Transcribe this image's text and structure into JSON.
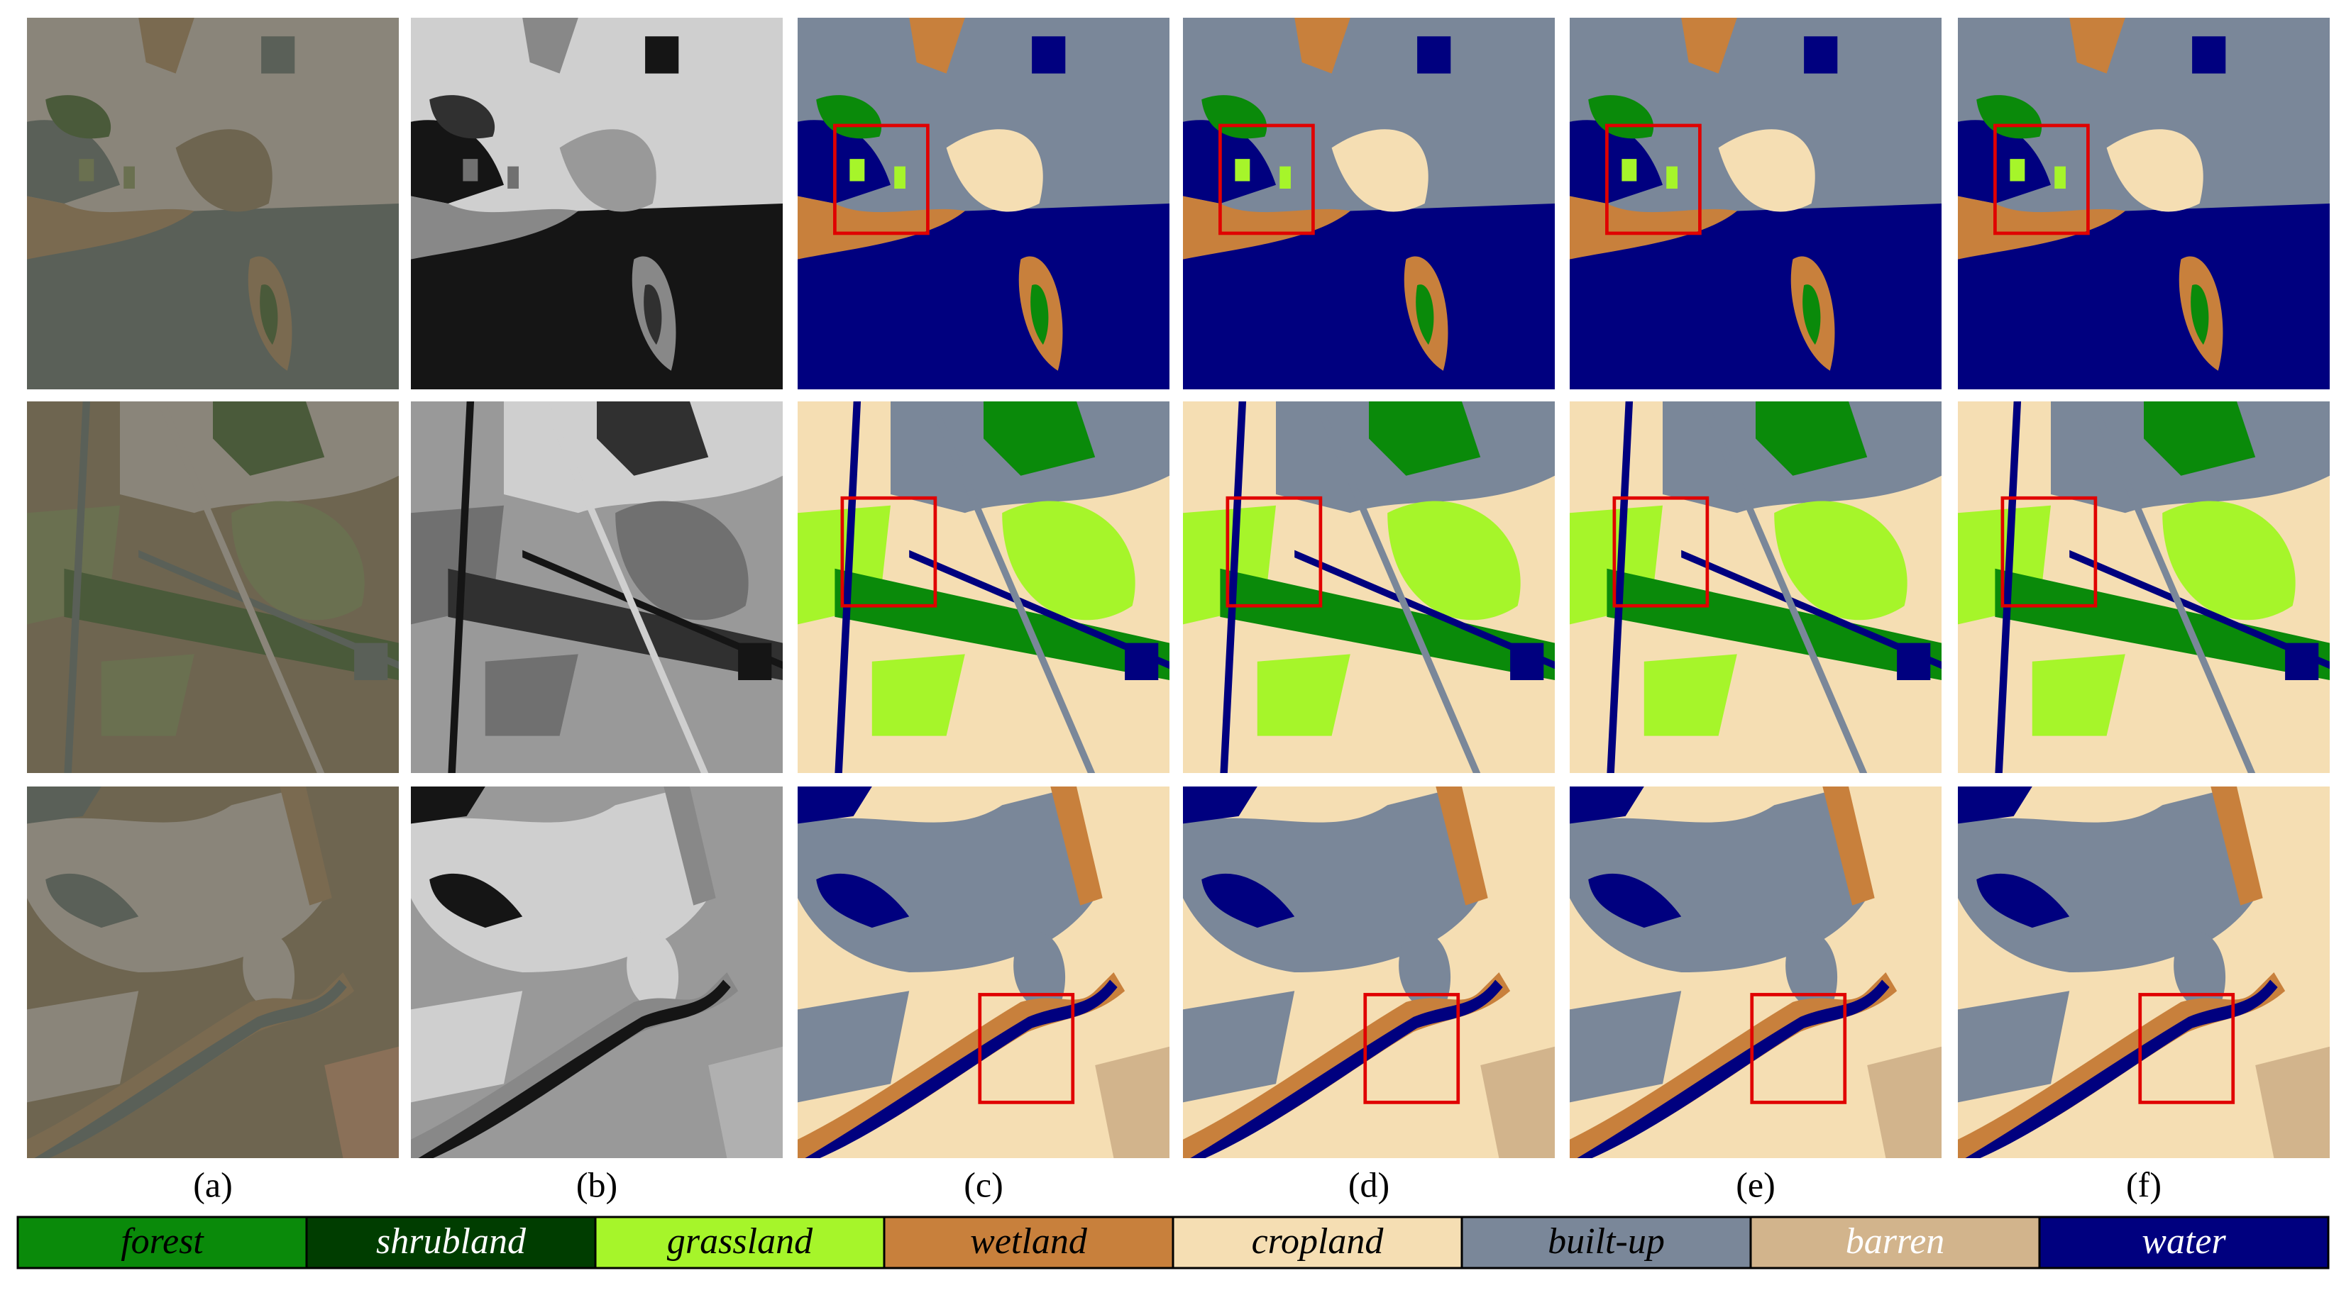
{
  "columns": [
    "(a)",
    "(b)",
    "(c)",
    "(d)",
    "(e)",
    "(f)"
  ],
  "legend": [
    {
      "name": "forest",
      "color": "#0a8a0a",
      "text_color": "#000000"
    },
    {
      "name": "shrubland",
      "color": "#003d00",
      "text_color": "#ffffff"
    },
    {
      "name": "grassland",
      "color": "#a6f52a",
      "text_color": "#000000"
    },
    {
      "name": "wetland",
      "color": "#c8803c",
      "text_color": "#000000"
    },
    {
      "name": "cropland",
      "color": "#f5deb3",
      "text_color": "#000000"
    },
    {
      "name": "built-up",
      "color": "#7a8799",
      "text_color": "#000000"
    },
    {
      "name": "barren",
      "color": "#d2b48c",
      "text_color": "#ffffff"
    },
    {
      "name": "water",
      "color": "#00007f",
      "text_color": "#ffffff"
    }
  ]
}
